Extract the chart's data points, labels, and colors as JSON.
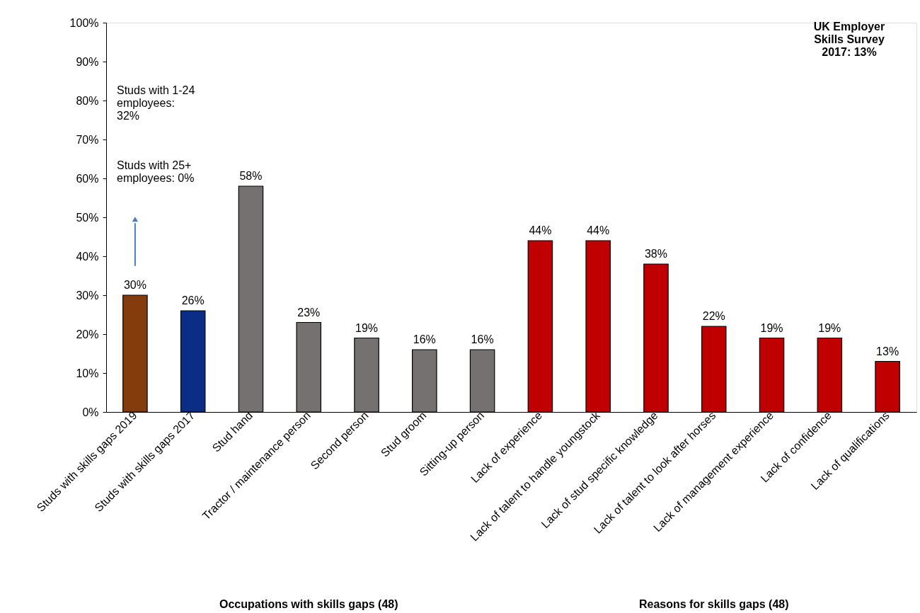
{
  "chart_data": {
    "type": "bar",
    "categories": [
      "Studs with skills gaps 2019",
      "Studs with skills gaps 2017",
      "Stud hand",
      "Tractor / maintenance person",
      "Second person",
      "Stud groom",
      "Sitting-up person",
      "Lack of experience",
      "Lack of talent to handle youngstock",
      "Lack of stud specific knowledge",
      "Lack of talent to look after horses",
      "Lack of management experience",
      "Lack of confidence",
      "Lack of qualifications"
    ],
    "values": [
      30,
      26,
      58,
      23,
      19,
      16,
      16,
      44,
      44,
      38,
      22,
      19,
      19,
      13
    ],
    "colors": [
      "#843c0c",
      "#0b2d86",
      "#767171",
      "#767171",
      "#767171",
      "#767171",
      "#767171",
      "#c00000",
      "#c00000",
      "#c00000",
      "#c00000",
      "#c00000",
      "#c00000",
      "#c00000"
    ],
    "value_labels": [
      "30%",
      "26%",
      "58%",
      "23%",
      "19%",
      "16%",
      "16%",
      "44%",
      "44%",
      "38%",
      "22%",
      "19%",
      "19%",
      "13%"
    ],
    "ylim": [
      0,
      100
    ],
    "yticks": [
      {
        "value": 0,
        "label": "0%"
      },
      {
        "value": 10,
        "label": "10%"
      },
      {
        "value": 20,
        "label": "20%"
      },
      {
        "value": 30,
        "label": "30%"
      },
      {
        "value": 40,
        "label": "40%"
      },
      {
        "value": 50,
        "label": "50%"
      },
      {
        "value": 60,
        "label": "60%"
      },
      {
        "value": 70,
        "label": "70%"
      },
      {
        "value": 80,
        "label": "80%"
      },
      {
        "value": 90,
        "label": "90%"
      },
      {
        "value": 100,
        "label": "100%"
      }
    ],
    "grid": false,
    "annotations": [
      "UK Employer\nSkills Survey\n2017: 13%",
      "Studs with 1-24\nemployees:\n32%",
      "Studs with 25+\nemployees: 0%",
      "Occupations with skills gaps (48)",
      "Reasons for skills gaps (48)"
    ]
  }
}
